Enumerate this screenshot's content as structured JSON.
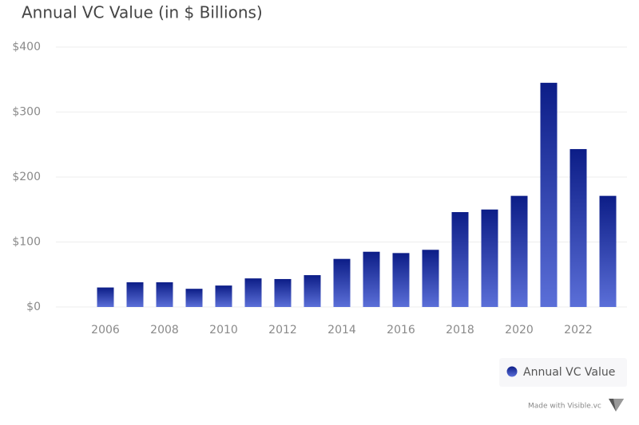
{
  "chart_data": {
    "type": "bar",
    "title": "Annual VC Value (in $ Billions)",
    "categories": [
      "2006",
      null,
      "2008",
      null,
      "2010",
      null,
      "2012",
      null,
      "2014",
      null,
      "2016",
      null,
      "2018",
      null,
      "2020",
      null,
      "2022",
      null
    ],
    "series": [
      {
        "name": "Annual VC Value",
        "color": "#0c1d87",
        "gradient_to": "#5b6fd8",
        "values": [
          30,
          38,
          38,
          28,
          33,
          44,
          43,
          49,
          74,
          85,
          83,
          88,
          146,
          150,
          171,
          345,
          243,
          171
        ]
      }
    ],
    "ylim": [
      0,
      400
    ],
    "yticks": [
      {
        "value": 0,
        "label": "$0"
      },
      {
        "value": 100,
        "label": "$100"
      },
      {
        "value": 200,
        "label": "$200"
      },
      {
        "value": 300,
        "label": "$300"
      },
      {
        "value": 400,
        "label": "$400"
      }
    ],
    "grid": true,
    "legend": "bottom-right"
  },
  "footer": "Made with Visible.vc"
}
